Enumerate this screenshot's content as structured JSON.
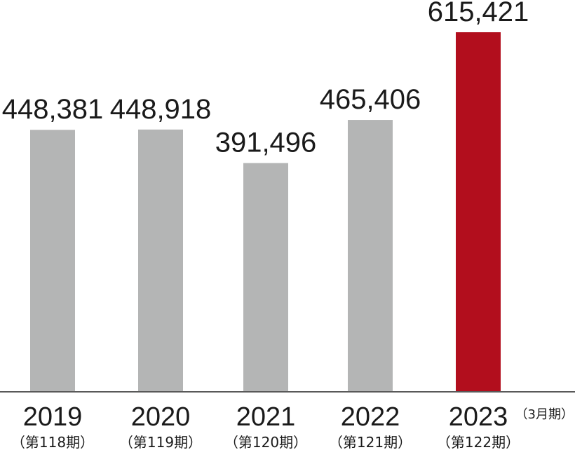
{
  "chart_data": {
    "type": "bar",
    "categories": [
      "2019",
      "2020",
      "2021",
      "2022",
      "2023"
    ],
    "period_labels": [
      "（第118期）",
      "（第119期）",
      "（第120期）",
      "（第121期）",
      "（第122期）"
    ],
    "values": [
      448381,
      448918,
      391496,
      465406,
      615421
    ],
    "value_labels": [
      "448,381",
      "448,918",
      "391,496",
      "465,406",
      "615,421"
    ],
    "unit_note": "（3月期）",
    "title": "",
    "xlabel": "",
    "ylabel": "",
    "ylim": [
      0,
      615421
    ],
    "grid": false,
    "legend": "none",
    "colors": {
      "default_bar": "#b4b5b5",
      "highlight_bar": "#b20e1d",
      "axis": "#595959",
      "text": "#1a1a1a"
    },
    "highlight_index": 4
  }
}
